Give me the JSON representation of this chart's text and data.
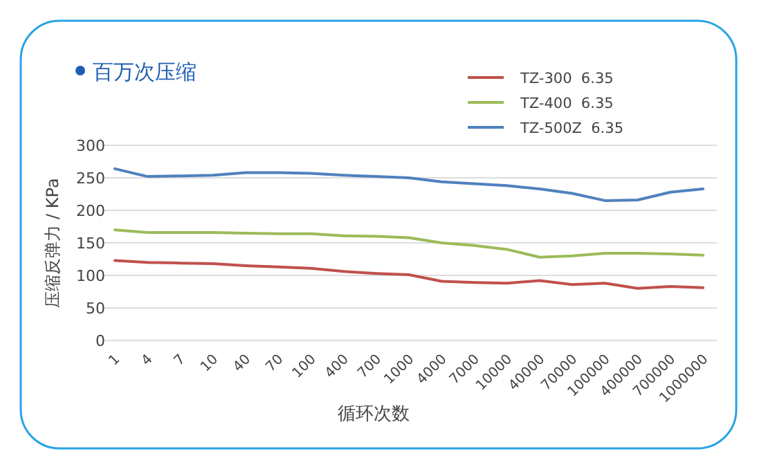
{
  "chart_data": {
    "type": "line",
    "title": "百万次压缩",
    "xlabel": "循环次数",
    "ylabel": "压缩反弹力 / KPa",
    "categories": [
      "1",
      "4",
      "7",
      "10",
      "40",
      "70",
      "100",
      "400",
      "700",
      "1000",
      "4000",
      "7000",
      "10000",
      "40000",
      "70000",
      "100000",
      "400000",
      "700000",
      "1000000"
    ],
    "ylim": [
      0,
      300
    ],
    "yticks": [
      0,
      50,
      100,
      150,
      200,
      250,
      300
    ],
    "grid": "y",
    "legend": "top right",
    "marker": "none",
    "line_style": "solid",
    "series": [
      {
        "name": "TZ-300  6.35",
        "color": "#c0504d",
        "values": [
          123,
          120,
          119,
          118,
          115,
          113,
          111,
          106,
          103,
          101,
          91,
          89,
          88,
          92,
          86,
          88,
          80,
          83,
          81
        ]
      },
      {
        "name": "TZ-400  6.35",
        "color": "#9bbb59",
        "values": [
          170,
          166,
          166,
          166,
          165,
          164,
          164,
          161,
          160,
          158,
          150,
          146,
          140,
          128,
          130,
          134,
          134,
          133,
          131
        ]
      },
      {
        "name": "TZ-500Z  6.35",
        "color": "#4f81bd",
        "values": [
          264,
          252,
          253,
          254,
          258,
          258,
          257,
          254,
          252,
          250,
          244,
          241,
          238,
          233,
          226,
          215,
          216,
          228,
          233
        ]
      }
    ]
  }
}
